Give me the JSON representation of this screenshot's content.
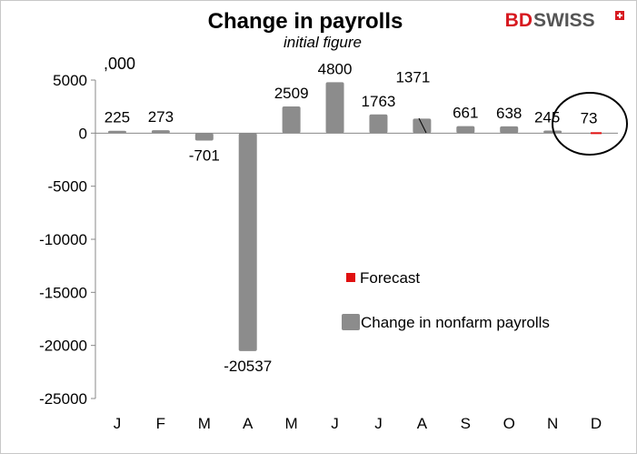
{
  "brand": {
    "prefix": "BD",
    "suffix": "SWISS",
    "prefix_color": "#d71920",
    "suffix_color": "#555555",
    "icon": "swiss-cross-icon"
  },
  "chart_data": {
    "type": "bar",
    "title": "Change in payrolls",
    "subtitle": "initial figure",
    "unit_label": ",000",
    "categories": [
      "J",
      "F",
      "M",
      "A",
      "M",
      "J",
      "J",
      "A",
      "S",
      "O",
      "N",
      "D"
    ],
    "series": [
      {
        "name": "Change in nonfarm payrolls",
        "color": "#8c8c8c",
        "values": [
          225,
          273,
          -701,
          -20537,
          2509,
          4800,
          1763,
          1371,
          661,
          638,
          245,
          null
        ]
      },
      {
        "name": "Forecast",
        "color": "#e01010",
        "values": [
          null,
          null,
          null,
          null,
          null,
          null,
          null,
          null,
          null,
          null,
          null,
          73
        ]
      }
    ],
    "data_labels": [
      "225",
      "273",
      "-701",
      "-20537",
      "2509",
      "4800",
      "1763",
      "1371",
      "661",
      "638",
      "245",
      "73"
    ],
    "ylim": [
      -25000,
      5000
    ],
    "y_ticks": [
      5000,
      0,
      -5000,
      -10000,
      -15000,
      -20000,
      -25000
    ],
    "y_tick_labels": [
      "5000",
      "0",
      "-5000",
      "-10000",
      "-15000",
      "-20000",
      "-25000"
    ],
    "grid": false,
    "legend_position": "lower-right",
    "annotation": "circle around December forecast"
  }
}
